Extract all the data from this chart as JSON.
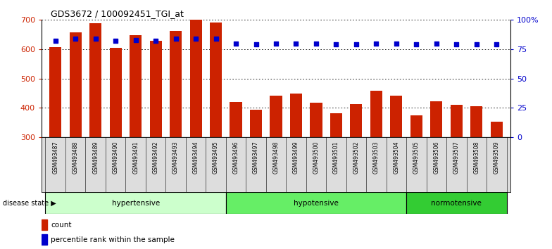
{
  "title": "GDS3672 / 100092451_TGI_at",
  "samples": [
    "GSM493487",
    "GSM493488",
    "GSM493489",
    "GSM493490",
    "GSM493491",
    "GSM493492",
    "GSM493493",
    "GSM493494",
    "GSM493495",
    "GSM493496",
    "GSM493497",
    "GSM493498",
    "GSM493499",
    "GSM493500",
    "GSM493501",
    "GSM493502",
    "GSM493503",
    "GSM493504",
    "GSM493505",
    "GSM493506",
    "GSM493507",
    "GSM493508",
    "GSM493509"
  ],
  "counts": [
    608,
    658,
    688,
    605,
    648,
    628,
    662,
    700,
    690,
    420,
    393,
    440,
    448,
    418,
    382,
    413,
    458,
    440,
    374,
    422,
    410,
    405,
    352
  ],
  "percentile_ranks": [
    82,
    84,
    84,
    82,
    83,
    82,
    84,
    84,
    84,
    80,
    79,
    80,
    80,
    80,
    79,
    79,
    80,
    80,
    79,
    80,
    79,
    79,
    79
  ],
  "groups": [
    {
      "name": "hypertensive",
      "start": 0,
      "end": 8,
      "color": "#ccffcc"
    },
    {
      "name": "hypotensive",
      "start": 9,
      "end": 17,
      "color": "#66ee66"
    },
    {
      "name": "normotensive",
      "start": 18,
      "end": 22,
      "color": "#33cc33"
    }
  ],
  "bar_color": "#cc2200",
  "dot_color": "#0000cc",
  "ymin": 300,
  "ymax": 700,
  "yticks": [
    300,
    400,
    500,
    600,
    700
  ],
  "y2ticks": [
    0,
    25,
    50,
    75,
    100
  ],
  "y2labels": [
    "0",
    "25",
    "50",
    "75",
    "100%"
  ],
  "y2min": 0,
  "y2max": 100,
  "grid_color": "black",
  "bg_color": "#ffffff",
  "tick_label_color_left": "#cc2200",
  "tick_label_color_right": "#0000cc"
}
